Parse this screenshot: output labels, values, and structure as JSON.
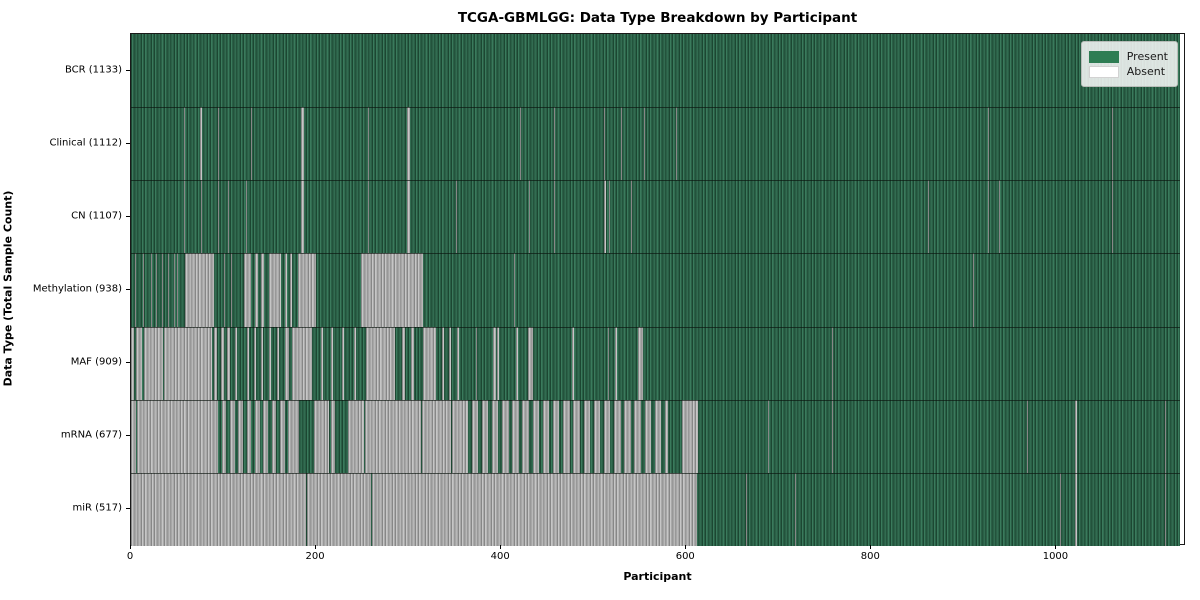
{
  "title": "TCGA-GBMLGG: Data Type Breakdown by Participant",
  "x_axis": {
    "label": "Participant",
    "ticks": [
      0,
      200,
      400,
      600,
      800,
      1000
    ],
    "max": 1140
  },
  "y_axis": {
    "label": "Data Type (Total Sample Count)"
  },
  "legend": {
    "position": "upper right",
    "present_label": "Present",
    "absent_label": "Absent"
  },
  "colors": {
    "present": "#2e7d53",
    "absent": "#ffffff",
    "absent_rendered": "#a9a9a9",
    "figure_bg": "#ffffff"
  },
  "total_participants": 1133,
  "chart_data": {
    "type": "heatmap",
    "title": "TCGA-GBMLGG: Data Type Breakdown by Participant",
    "xlabel": "Participant",
    "ylabel": "Data Type (Total Sample Count)",
    "xlim": [
      0,
      1140
    ],
    "x_ticks": [
      0,
      200,
      400,
      600,
      800,
      1000
    ],
    "legend_entries": [
      "Present",
      "Absent"
    ],
    "grid": false,
    "rows": [
      {
        "name": "BCR",
        "label": "BCR (1133)",
        "present_count": 1133,
        "absent_intervals": []
      },
      {
        "name": "Clinical",
        "label": "Clinical (1112)",
        "present_count": 1112,
        "absent_intervals": [
          [
            57,
            58
          ],
          [
            75,
            77
          ],
          [
            94,
            95
          ],
          [
            130,
            131
          ],
          [
            184,
            187
          ],
          [
            256,
            257
          ],
          [
            298,
            301
          ],
          [
            420,
            421
          ],
          [
            457,
            458
          ],
          [
            511,
            512
          ],
          [
            529,
            530
          ],
          [
            554,
            555
          ],
          [
            589,
            590
          ],
          [
            926,
            927
          ],
          [
            1060,
            1061
          ]
        ]
      },
      {
        "name": "CN",
        "label": "CN (1107)",
        "present_count": 1107,
        "absent_intervals": [
          [
            57,
            58
          ],
          [
            76,
            77
          ],
          [
            94,
            95
          ],
          [
            105,
            106
          ],
          [
            124,
            125
          ],
          [
            184,
            187
          ],
          [
            256,
            257
          ],
          [
            298,
            301
          ],
          [
            351,
            352
          ],
          [
            430,
            431
          ],
          [
            457,
            458
          ],
          [
            511,
            513
          ],
          [
            516,
            517
          ],
          [
            540,
            541
          ],
          [
            861,
            862
          ],
          [
            926,
            927
          ],
          [
            938,
            939
          ],
          [
            1060,
            1061
          ]
        ]
      },
      {
        "name": "Methylation",
        "label": "Methylation (938)",
        "present_count": 938,
        "absent_intervals": [
          [
            4,
            5
          ],
          [
            13,
            14
          ],
          [
            22,
            23
          ],
          [
            27,
            28
          ],
          [
            34,
            35
          ],
          [
            40,
            41
          ],
          [
            47,
            48
          ],
          [
            50,
            51
          ],
          [
            58,
            90
          ],
          [
            100,
            101
          ],
          [
            108,
            109
          ],
          [
            122,
            130
          ],
          [
            134,
            137
          ],
          [
            141,
            144
          ],
          [
            149,
            162
          ],
          [
            166,
            169
          ],
          [
            172,
            174
          ],
          [
            180,
            200
          ],
          [
            249,
            315
          ],
          [
            414,
            415
          ],
          [
            910,
            911
          ]
        ]
      },
      {
        "name": "MAF",
        "label": "MAF (909)",
        "present_count": 909,
        "absent_intervals": [
          [
            0,
            3
          ],
          [
            5,
            12
          ],
          [
            14,
            35
          ],
          [
            36,
            60
          ],
          [
            61,
            88
          ],
          [
            90,
            93
          ],
          [
            97,
            100
          ],
          [
            104,
            107
          ],
          [
            112,
            115
          ],
          [
            125,
            127
          ],
          [
            133,
            135
          ],
          [
            141,
            143
          ],
          [
            149,
            151
          ],
          [
            158,
            160
          ],
          [
            166,
            171
          ],
          [
            174,
            196
          ],
          [
            205,
            207
          ],
          [
            216,
            218
          ],
          [
            228,
            230
          ],
          [
            241,
            243
          ],
          [
            254,
            285
          ],
          [
            293,
            296
          ],
          [
            303,
            306
          ],
          [
            315,
            330
          ],
          [
            336,
            338
          ],
          [
            344,
            346
          ],
          [
            352,
            354
          ],
          [
            373,
            374
          ],
          [
            391,
            394
          ],
          [
            396,
            398
          ],
          [
            416,
            418
          ],
          [
            429,
            434
          ],
          [
            476,
            479
          ],
          [
            515,
            516
          ],
          [
            523,
            525
          ],
          [
            548,
            553
          ],
          [
            758,
            759
          ]
        ]
      },
      {
        "name": "mRNA",
        "label": "mRNA (677)",
        "present_count": 677,
        "absent_intervals": [
          [
            0,
            5
          ],
          [
            6,
            60
          ],
          [
            61,
            94
          ],
          [
            98,
            103
          ],
          [
            107,
            112
          ],
          [
            116,
            121
          ],
          [
            125,
            130
          ],
          [
            134,
            139
          ],
          [
            143,
            148
          ],
          [
            152,
            157
          ],
          [
            161,
            166
          ],
          [
            170,
            182
          ],
          [
            198,
            214
          ],
          [
            216,
            220
          ],
          [
            234,
            252
          ],
          [
            253,
            313
          ],
          [
            314,
            346
          ],
          [
            347,
            364
          ],
          [
            368,
            375
          ],
          [
            379,
            386
          ],
          [
            390,
            397
          ],
          [
            401,
            408
          ],
          [
            412,
            419
          ],
          [
            423,
            430
          ],
          [
            434,
            441
          ],
          [
            445,
            452
          ],
          [
            456,
            463
          ],
          [
            467,
            474
          ],
          [
            478,
            485
          ],
          [
            489,
            496
          ],
          [
            500,
            507
          ],
          [
            511,
            518
          ],
          [
            522,
            529
          ],
          [
            533,
            540
          ],
          [
            544,
            551
          ],
          [
            555,
            562
          ],
          [
            566,
            573
          ],
          [
            577,
            580
          ],
          [
            595,
            613
          ],
          [
            688,
            689
          ],
          [
            758,
            759
          ],
          [
            968,
            969
          ],
          [
            1020,
            1022
          ],
          [
            1117,
            1118
          ]
        ]
      },
      {
        "name": "miR",
        "label": "miR (517)",
        "present_count": 517,
        "absent_intervals": [
          [
            0,
            189
          ],
          [
            190,
            259
          ],
          [
            260,
            612
          ],
          [
            665,
            666
          ],
          [
            718,
            719
          ],
          [
            1004,
            1005
          ],
          [
            1020,
            1022
          ],
          [
            1117,
            1118
          ]
        ]
      }
    ]
  }
}
